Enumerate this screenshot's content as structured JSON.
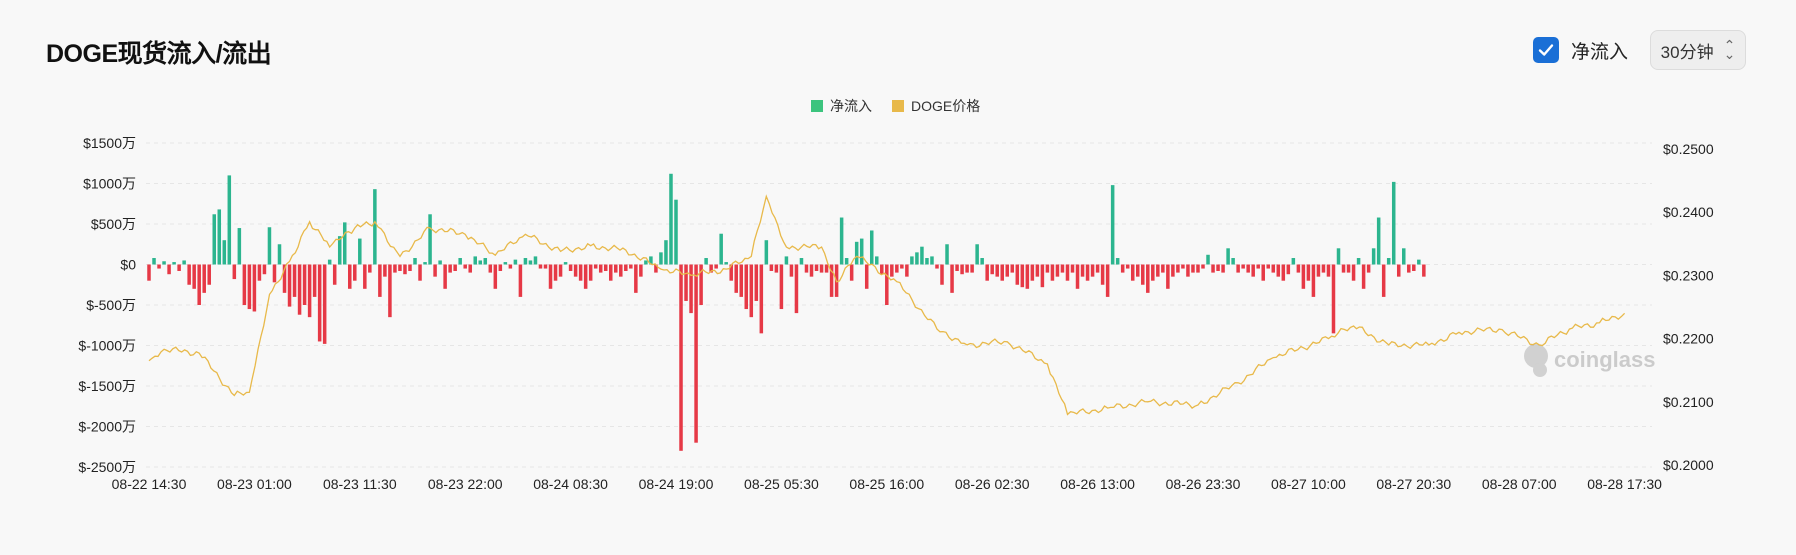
{
  "header": {
    "title": "DOGE现货流入/流出"
  },
  "controls": {
    "checkbox_label": "净流入",
    "checkbox_checked": true,
    "interval_select": "30分钟"
  },
  "watermark": "coinglass",
  "colors": {
    "inflow": "#2cb58f",
    "outflow": "#e63946",
    "price": "#e8b94a",
    "legend_net": "#3cc47e",
    "checkbox": "#1a6fd6"
  },
  "chart_data": {
    "type": "bar",
    "legend": [
      "净流入",
      "DOGE价格"
    ],
    "legend_position": "top-center",
    "grid": true,
    "x_tick_labels": [
      "08-22 14:30",
      "08-23 01:00",
      "08-23 11:30",
      "08-23 22:00",
      "08-24 08:30",
      "08-24 19:00",
      "08-25 05:30",
      "08-25 16:00",
      "08-26 02:30",
      "08-26 13:00",
      "08-26 23:30",
      "08-27 10:00",
      "08-27 20:30",
      "08-28 07:00",
      "08-28 17:30"
    ],
    "y_left": {
      "unit": "万",
      "ylim": [
        -2500,
        1500
      ],
      "tick_labels": [
        "$1500万",
        "$1000万",
        "$500万",
        "$0",
        "$-500万",
        "$-1000万",
        "$-1500万",
        "$-2000万",
        "$-2500万"
      ]
    },
    "y_right": {
      "ylim": [
        0.2,
        0.25
      ],
      "tick_labels": [
        "$0.2500",
        "$0.2400",
        "$0.2300",
        "$0.2200",
        "$0.2100",
        "$0.2000"
      ]
    },
    "series": [
      {
        "name": "净流入",
        "type": "bar",
        "x_start": "08-22 14:30",
        "interval_minutes": 30,
        "values": [
          -200,
          80,
          -50,
          40,
          -120,
          30,
          -80,
          50,
          -250,
          -300,
          -500,
          -350,
          -250,
          620,
          680,
          300,
          1100,
          -180,
          450,
          -500,
          -550,
          -580,
          -200,
          -120,
          460,
          -220,
          250,
          -350,
          -520,
          -400,
          -620,
          -500,
          -650,
          -400,
          -950,
          -980,
          60,
          -250,
          350,
          520,
          -300,
          -200,
          320,
          -300,
          -100,
          930,
          -400,
          -150,
          -650,
          -100,
          -80,
          -120,
          -80,
          80,
          -200,
          30,
          620,
          -150,
          50,
          -300,
          -100,
          -80,
          80,
          -50,
          -100,
          100,
          50,
          80,
          -100,
          -300,
          -80,
          30,
          -50,
          60,
          -400,
          80,
          50,
          100,
          -50,
          -50,
          -300,
          -200,
          -150,
          30,
          -80,
          -150,
          -200,
          -300,
          -200,
          -50,
          -100,
          -80,
          -200,
          -100,
          -150,
          -80,
          -50,
          -350,
          -150,
          50,
          100,
          -100,
          150,
          300,
          1120,
          800,
          -2300,
          -450,
          -600,
          -2200,
          -500,
          80,
          -100,
          -50,
          380,
          30,
          -200,
          -350,
          -400,
          -550,
          -650,
          -450,
          -850,
          300,
          -80,
          -100,
          -550,
          100,
          -150,
          -600,
          80,
          -100,
          -150,
          -80,
          -100,
          -100,
          -400,
          -400,
          580,
          80,
          -200,
          280,
          320,
          -300,
          420,
          100,
          -120,
          -500,
          -150,
          -100,
          -50,
          -150,
          100,
          150,
          220,
          80,
          100,
          -50,
          -250,
          250,
          -350,
          -80,
          -120,
          -100,
          -100,
          250,
          80,
          -200,
          -120,
          -150,
          -200,
          -150,
          -100,
          -250,
          -280,
          -300,
          -200,
          -150,
          -280,
          -100,
          -200,
          -150,
          -100,
          -200,
          -100,
          -300,
          -150,
          -200,
          -150,
          -100,
          -250,
          -400,
          980,
          80,
          -100,
          -50,
          -200,
          -150,
          -250,
          -350,
          -200,
          -150,
          -100,
          -300,
          -150,
          -100,
          -50,
          -150,
          -100,
          -100,
          -50,
          120,
          -100,
          -80,
          -100,
          200,
          80,
          -100,
          -50,
          -100,
          -150,
          -50,
          -200,
          -50,
          -100,
          -150,
          -200,
          -120,
          80,
          -100,
          -300,
          -200,
          -400,
          -150,
          -100,
          -150,
          -850,
          200,
          -100,
          -100,
          -200,
          80,
          -300,
          -100,
          200,
          580,
          -400,
          80,
          1020,
          -150,
          200,
          -100,
          -80,
          60,
          -150
        ]
      },
      {
        "name": "DOGE价格",
        "type": "line",
        "points": [
          [
            "08-22 14:30",
            0.2165
          ],
          [
            "08-22 16:00",
            0.2183
          ],
          [
            "08-22 19:30",
            0.2177
          ],
          [
            "08-22 23:00",
            0.211
          ],
          [
            "08-23 00:30",
            0.2115
          ],
          [
            "08-23 02:30",
            0.227
          ],
          [
            "08-23 04:30",
            0.2322
          ],
          [
            "08-23 06:30",
            0.2385
          ],
          [
            "08-23 08:30",
            0.2345
          ],
          [
            "08-23 11:00",
            0.2375
          ],
          [
            "08-23 13:00",
            0.2385
          ],
          [
            "08-23 15:30",
            0.233
          ],
          [
            "08-23 18:30",
            0.2375
          ],
          [
            "08-23 22:00",
            0.2365
          ],
          [
            "08-24 01:00",
            0.2332
          ],
          [
            "08-24 04:00",
            0.2365
          ],
          [
            "08-24 07:30",
            0.2338
          ],
          [
            "08-24 10:30",
            0.2347
          ],
          [
            "08-24 14:00",
            0.234
          ],
          [
            "08-24 17:30",
            0.231
          ],
          [
            "08-24 20:30",
            0.23
          ],
          [
            "08-25 00:00",
            0.231
          ],
          [
            "08-25 02:30",
            0.233
          ],
          [
            "08-25 04:00",
            0.2425
          ],
          [
            "08-25 06:00",
            0.2345
          ],
          [
            "08-25 09:30",
            0.2345
          ],
          [
            "08-25 11:00",
            0.229
          ],
          [
            "08-25 13:00",
            0.233
          ],
          [
            "08-25 17:00",
            0.229
          ],
          [
            "08-25 21:00",
            0.2215
          ],
          [
            "08-26 00:00",
            0.219
          ],
          [
            "08-26 04:00",
            0.2195
          ],
          [
            "08-26 08:00",
            0.216
          ],
          [
            "08-26 10:00",
            0.208
          ],
          [
            "08-26 14:00",
            0.209
          ],
          [
            "08-26 18:00",
            0.21
          ],
          [
            "08-26 23:00",
            0.2095
          ],
          [
            "08-27 03:00",
            0.213
          ],
          [
            "08-27 06:30",
            0.217
          ],
          [
            "08-27 12:00",
            0.22
          ],
          [
            "08-27 14:30",
            0.222
          ],
          [
            "08-27 18:00",
            0.219
          ],
          [
            "08-27 22:00",
            0.219
          ],
          [
            "08-28 01:00",
            0.221
          ],
          [
            "08-28 05:00",
            0.2215
          ],
          [
            "08-28 09:00",
            0.219
          ],
          [
            "08-28 12:00",
            0.2215
          ],
          [
            "08-28 15:00",
            0.2225
          ],
          [
            "08-28 17:30",
            0.224
          ]
        ]
      }
    ]
  }
}
